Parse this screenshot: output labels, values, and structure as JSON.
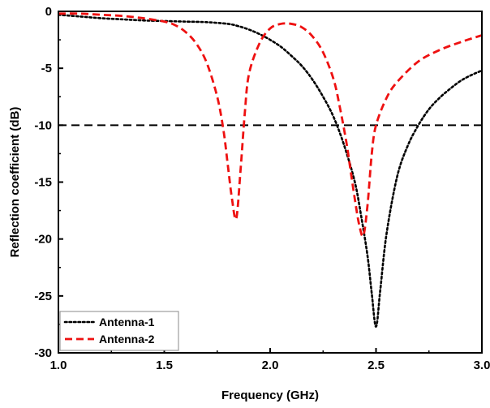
{
  "chart_data": {
    "type": "line",
    "xlabel": "Frequency (GHz)",
    "ylabel": "Reflection coefficient (dB)",
    "xlim": [
      1.0,
      3.0
    ],
    "ylim": [
      -30,
      0
    ],
    "xticks": [
      "1.0",
      "1.5",
      "2.0",
      "2.5",
      "3.0"
    ],
    "xtick_values": [
      1.0,
      1.5,
      2.0,
      2.5,
      3.0
    ],
    "yticks": [
      "0",
      "-5",
      "-10",
      "-15",
      "-20",
      "-25",
      "-30"
    ],
    "ytick_values": [
      0,
      -5,
      -10,
      -15,
      -20,
      -25,
      -30
    ],
    "grid": false,
    "legend_position": "bottom-left",
    "reference_line": {
      "y": -10,
      "style": "dashed",
      "color": "#000000"
    },
    "series": [
      {
        "name": "Antenna-1",
        "color": "#000000",
        "style": "dotted",
        "x": [
          1.0,
          1.1,
          1.2,
          1.3,
          1.4,
          1.5,
          1.6,
          1.7,
          1.8,
          1.85,
          1.9,
          1.95,
          2.0,
          2.05,
          2.1,
          2.15,
          2.2,
          2.25,
          2.3,
          2.35,
          2.4,
          2.43,
          2.46,
          2.48,
          2.5,
          2.52,
          2.55,
          2.6,
          2.65,
          2.7,
          2.75,
          2.8,
          2.85,
          2.9,
          2.95,
          3.0
        ],
        "y": [
          -0.3,
          -0.45,
          -0.6,
          -0.7,
          -0.8,
          -0.85,
          -0.9,
          -0.95,
          -1.1,
          -1.3,
          -1.6,
          -2.0,
          -2.5,
          -3.1,
          -3.9,
          -4.8,
          -6.0,
          -7.5,
          -9.3,
          -11.8,
          -15.0,
          -18.0,
          -21.5,
          -24.8,
          -27.7,
          -24.5,
          -19.5,
          -14.5,
          -11.8,
          -10.0,
          -8.6,
          -7.6,
          -6.8,
          -6.1,
          -5.6,
          -5.2
        ]
      },
      {
        "name": "Antenna-2",
        "color": "#ee1111",
        "style": "dashed",
        "x": [
          1.0,
          1.1,
          1.2,
          1.3,
          1.4,
          1.5,
          1.55,
          1.6,
          1.65,
          1.7,
          1.75,
          1.78,
          1.8,
          1.82,
          1.84,
          1.86,
          1.88,
          1.9,
          1.95,
          2.0,
          2.05,
          2.1,
          2.15,
          2.2,
          2.25,
          2.3,
          2.33,
          2.36,
          2.38,
          2.4,
          2.42,
          2.44,
          2.46,
          2.48,
          2.5,
          2.55,
          2.6,
          2.7,
          2.8,
          2.9,
          3.0
        ],
        "y": [
          -0.2,
          -0.2,
          -0.3,
          -0.4,
          -0.6,
          -0.9,
          -1.2,
          -1.8,
          -2.8,
          -4.5,
          -7.5,
          -10.5,
          -13.5,
          -16.5,
          -18.2,
          -14.0,
          -9.0,
          -5.5,
          -2.8,
          -1.5,
          -1.1,
          -1.1,
          -1.4,
          -2.2,
          -3.6,
          -6.0,
          -8.5,
          -11.5,
          -14.0,
          -16.5,
          -18.7,
          -19.7,
          -17.0,
          -12.5,
          -10.0,
          -7.6,
          -6.2,
          -4.4,
          -3.4,
          -2.7,
          -2.1
        ]
      }
    ]
  }
}
